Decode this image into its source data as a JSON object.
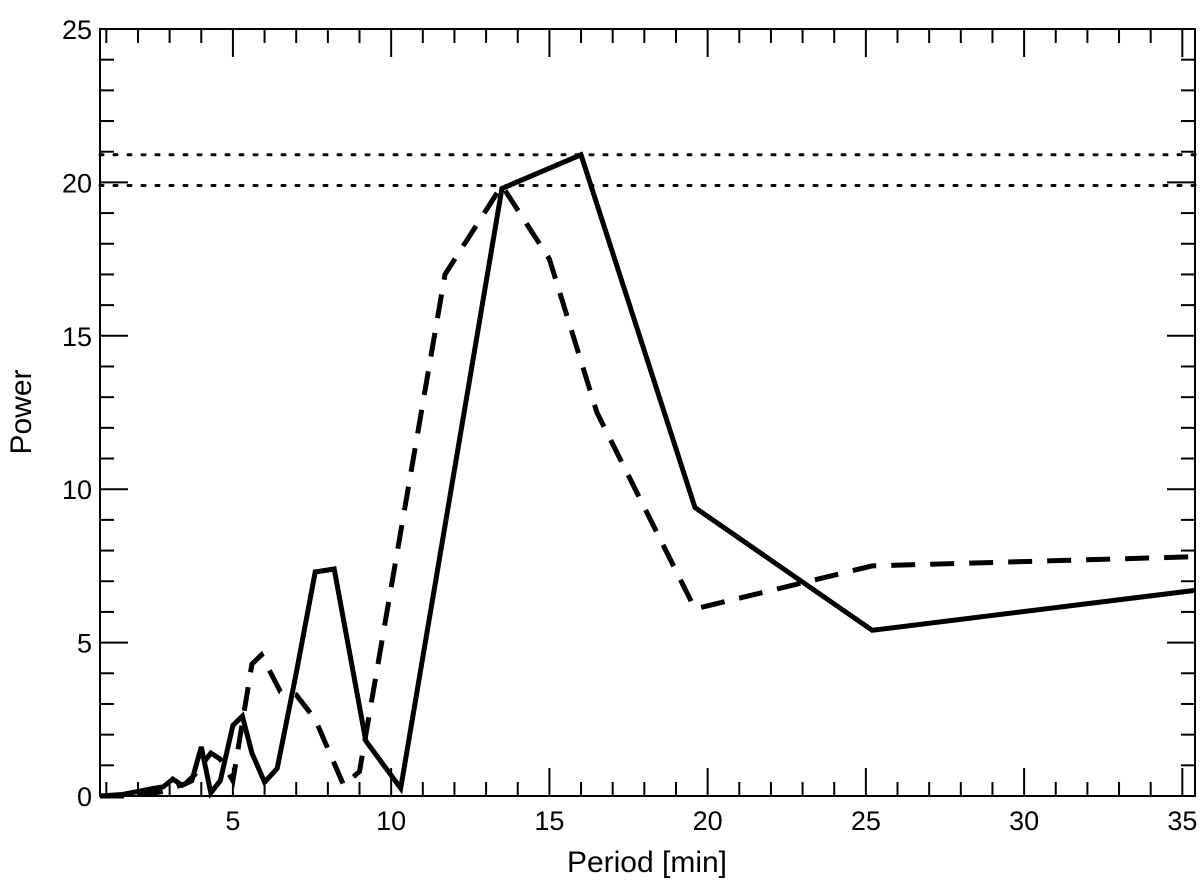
{
  "chart_data": {
    "type": "line",
    "xlabel": "Period [min]",
    "ylabel": "Power",
    "xlim": [
      0.8,
      35.4
    ],
    "ylim": [
      0,
      25
    ],
    "xticks": [
      5,
      10,
      15,
      20,
      25,
      30,
      35
    ],
    "xtick_labels": [
      "5",
      "10",
      "15",
      "20",
      "25",
      "30",
      "35"
    ],
    "xminor_step": 1,
    "yticks": [
      0,
      5,
      10,
      15,
      20,
      25
    ],
    "ytick_labels": [
      "0",
      "5",
      "10",
      "15",
      "20",
      "25"
    ],
    "yminor_step": 1,
    "grid": false,
    "legend": "none",
    "reference_lines": [
      {
        "style": "dotted",
        "y": 20.9
      },
      {
        "style": "dotted",
        "y": 19.9
      }
    ],
    "series": [
      {
        "style": "solid",
        "color": "#000000",
        "x": [
          0.8,
          1.5,
          2.0,
          2.5,
          2.8,
          3.1,
          3.4,
          3.7,
          4.0,
          4.3,
          4.6,
          5.0,
          5.3,
          5.6,
          6.0,
          6.4,
          7.0,
          7.6,
          8.2,
          9.2,
          10.3,
          13.5,
          16.0,
          19.6,
          25.2,
          35.4
        ],
        "y": [
          0.0,
          0.05,
          0.15,
          0.25,
          0.3,
          0.55,
          0.35,
          0.5,
          1.6,
          0.1,
          0.5,
          2.3,
          2.6,
          1.4,
          0.45,
          0.9,
          4.0,
          7.3,
          7.4,
          1.8,
          0.25,
          19.8,
          20.9,
          9.4,
          5.4,
          6.7
        ]
      },
      {
        "style": "dashed",
        "color": "#000000",
        "x": [
          0.8,
          1.5,
          2.0,
          2.5,
          2.8,
          3.2,
          3.5,
          3.8,
          4.3,
          4.6,
          5.0,
          5.6,
          5.9,
          6.5,
          7.0,
          7.6,
          8.5,
          9.0,
          11.7,
          13.5,
          15.0,
          16.5,
          19.6,
          25.2,
          35.4
        ],
        "y": [
          0.0,
          0.0,
          0.05,
          0.1,
          0.15,
          0.3,
          0.4,
          0.7,
          1.4,
          1.2,
          0.5,
          4.3,
          4.6,
          3.4,
          3.3,
          2.5,
          0.35,
          0.8,
          17.0,
          19.9,
          17.5,
          12.5,
          6.1,
          7.5,
          7.8
        ]
      }
    ]
  }
}
